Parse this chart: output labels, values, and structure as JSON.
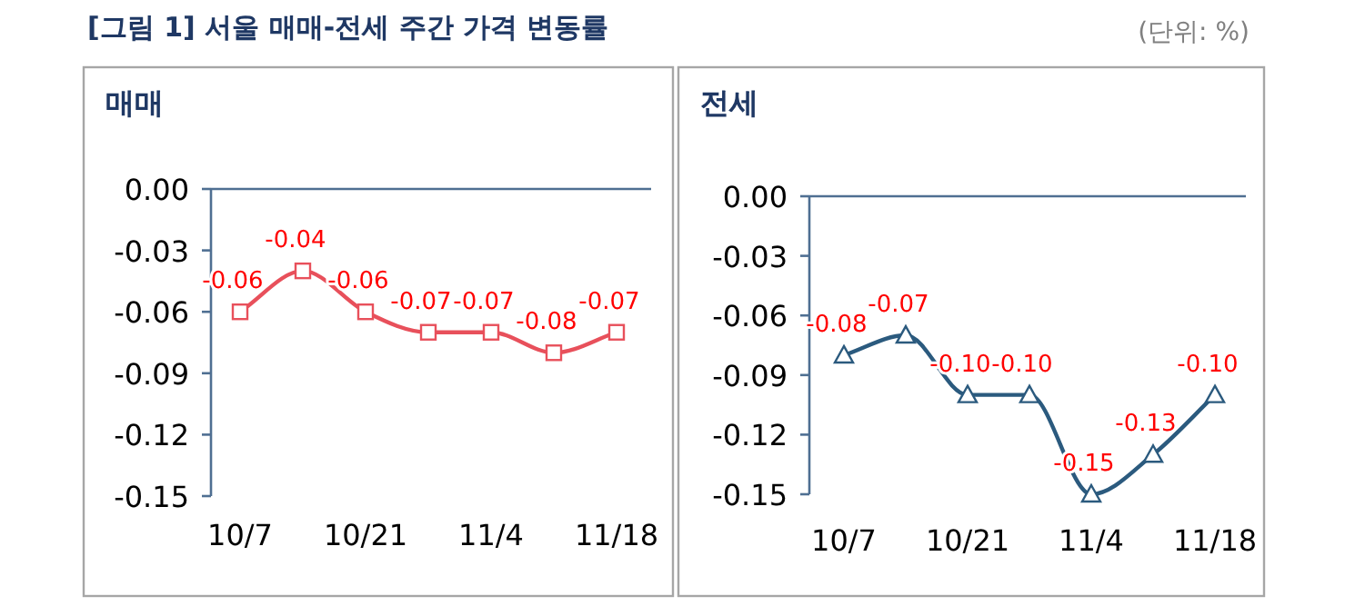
{
  "chart_data": [
    {
      "type": "line",
      "title": "[그림 1] 서울 매매-전세 주간 가격 변동률",
      "subtitle": "매매",
      "categories": [
        "10/7",
        null,
        "10/21",
        null,
        "11/4",
        null,
        "11/18"
      ],
      "series": [
        {
          "color": "#e8505b",
          "values": [
            -0.06,
            -0.04,
            -0.06,
            -0.07,
            -0.07,
            -0.08,
            -0.07
          ],
          "value_labels": [
            "-0.06",
            "-0.04",
            "-0.06",
            "-0.07",
            "-0.07",
            "-0.08",
            "-0.07"
          ]
        }
      ],
      "ylim": [
        -0.15,
        0
      ],
      "yticks": [
        {
          "value": 0,
          "label": "0.00"
        },
        {
          "value": -0.03,
          "label": "-0.03"
        },
        {
          "value": -0.06,
          "label": "-0.06"
        },
        {
          "value": -0.09,
          "label": "-0.09"
        },
        {
          "value": -0.12,
          "label": "-0.12"
        },
        {
          "value": -0.15,
          "label": "-0.15"
        }
      ],
      "marker": "square"
    },
    {
      "type": "line",
      "subtitle": "전세",
      "annotations": [
        "(단위: %)"
      ],
      "categories": [
        "10/7",
        null,
        "10/21",
        null,
        "11/4",
        null,
        "11/18"
      ],
      "series": [
        {
          "color": "#2b5a7e",
          "values": [
            -0.08,
            -0.07,
            -0.1,
            -0.1,
            -0.15,
            -0.13,
            -0.1
          ],
          "value_labels": [
            "-0.08",
            "-0.07",
            "-0.10",
            "-0.10",
            "-0.15",
            "-0.13",
            "-0.10"
          ]
        }
      ],
      "ylim": [
        -0.15,
        0
      ],
      "yticks": [
        {
          "value": 0,
          "label": "0.00"
        },
        {
          "value": -0.03,
          "label": "-0.03"
        },
        {
          "value": -0.06,
          "label": "-0.06"
        },
        {
          "value": -0.09,
          "label": "-0.09"
        },
        {
          "value": -0.12,
          "label": "-0.12"
        },
        {
          "value": -0.15,
          "label": "-0.15"
        }
      ],
      "marker": "triangle"
    }
  ]
}
